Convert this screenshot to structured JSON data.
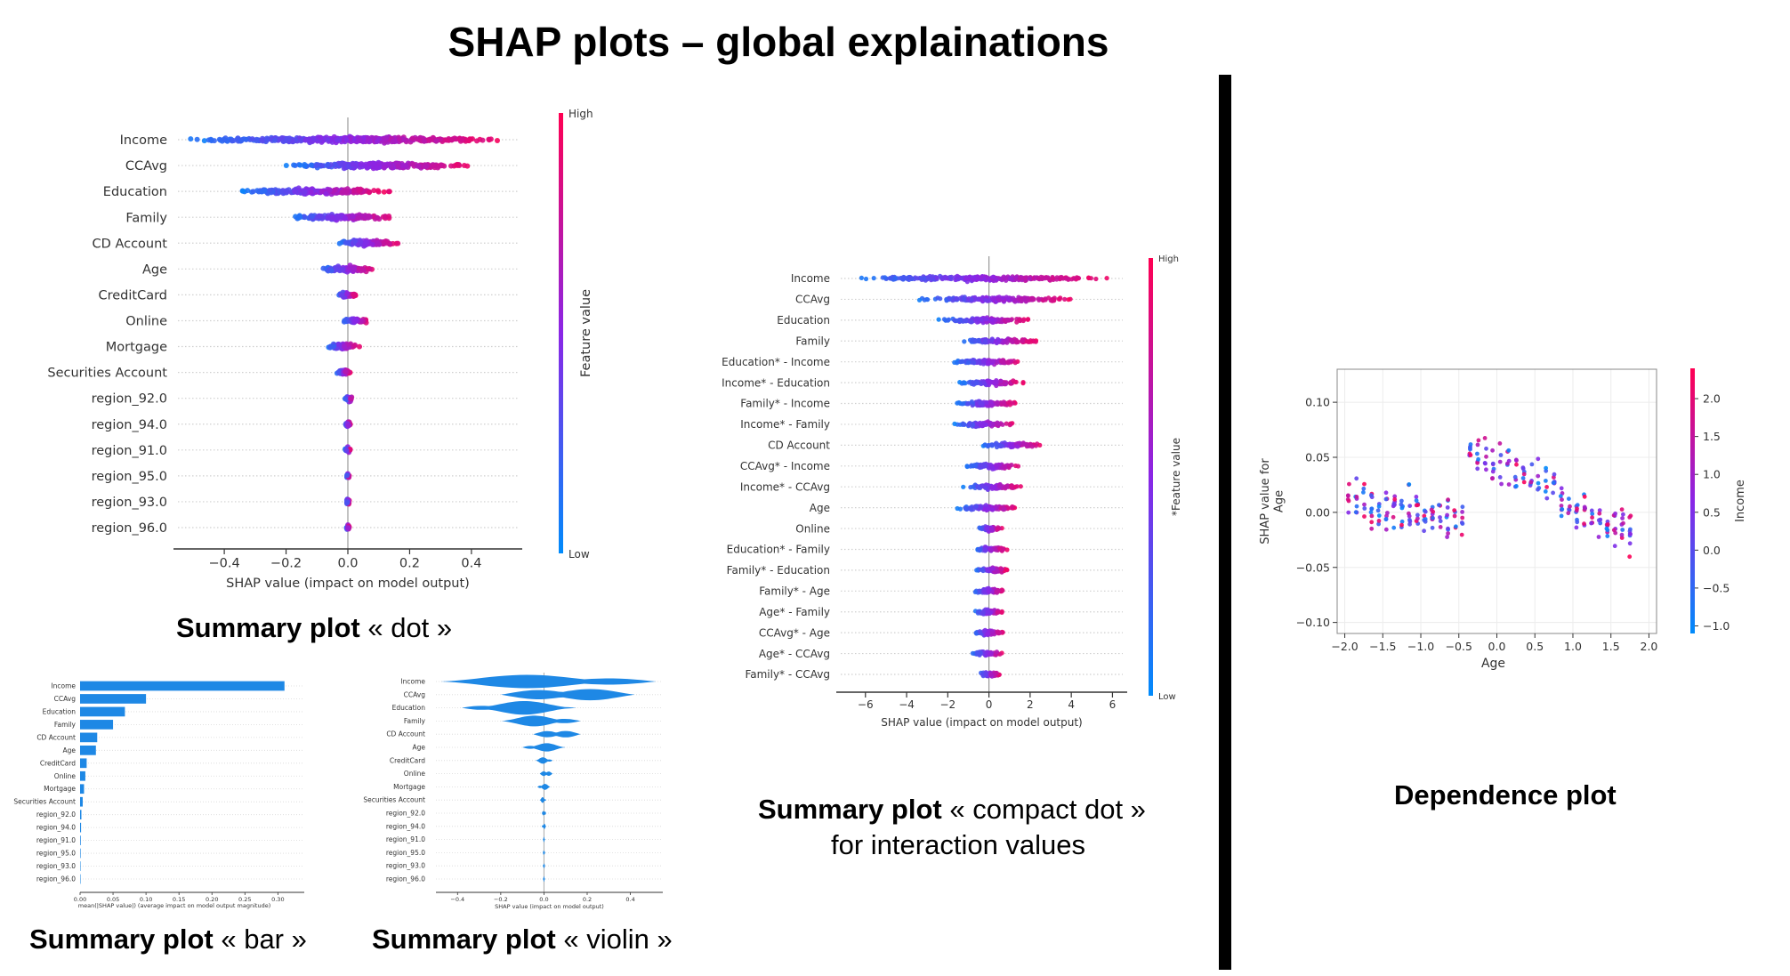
{
  "page": {
    "title": "SHAP plots – global explainations",
    "captions": {
      "dot": {
        "bold": "Summary plot",
        "rest": "« dot »"
      },
      "bar": {
        "bold": "Summary plot",
        "rest": "« bar »"
      },
      "violin": {
        "bold": "Summary plot",
        "rest": "« violin »"
      },
      "compact": {
        "bold": "Summary plot",
        "rest": "« compact dot »",
        "line2": "for interaction values"
      },
      "dependence": {
        "bold": "Dependence plot"
      }
    }
  },
  "colors": {
    "high": "#ff0052",
    "low": "#008bfb",
    "bar": "#1e88e5",
    "grid": "#e0e0e0"
  },
  "chart_data": [
    {
      "id": "dot",
      "type": "scatter",
      "features": [
        "Income",
        "CCAvg",
        "Education",
        "Family",
        "CD Account",
        "Age",
        "CreditCard",
        "Online",
        "Mortgage",
        "Securities Account",
        "region_92.0",
        "region_94.0",
        "region_91.0",
        "region_95.0",
        "region_93.0",
        "region_96.0"
      ],
      "spread": [
        [
          -0.52,
          0.52
        ],
        [
          -0.22,
          0.42
        ],
        [
          -0.35,
          0.15
        ],
        [
          -0.2,
          0.17
        ],
        [
          -0.05,
          0.17
        ],
        [
          -0.1,
          0.1
        ],
        [
          -0.04,
          0.03
        ],
        [
          -0.02,
          0.07
        ],
        [
          -0.07,
          0.04
        ],
        [
          -0.04,
          0.01
        ],
        [
          -0.01,
          0.02
        ],
        [
          -0.01,
          0.01
        ],
        [
          -0.01,
          0.01
        ],
        [
          -0.005,
          0.005
        ],
        [
          -0.005,
          0.005
        ],
        [
          -0.005,
          0.005
        ]
      ],
      "xticks": [
        -0.4,
        -0.2,
        0.0,
        0.2,
        0.4
      ],
      "xtick_labels": [
        "−0.4",
        "−0.2",
        "0.0",
        "0.2",
        "0.4"
      ],
      "xlim": [
        -0.55,
        0.55
      ],
      "xlabel": "SHAP value (impact on model output)",
      "colorbar": {
        "label": "Feature value",
        "high": "High",
        "low": "Low"
      }
    },
    {
      "id": "bar",
      "type": "bar",
      "features": [
        "Income",
        "CCAvg",
        "Education",
        "Family",
        "CD Account",
        "Age",
        "CreditCard",
        "Online",
        "Mortgage",
        "Securities Account",
        "region_92.0",
        "region_94.0",
        "region_91.0",
        "region_95.0",
        "region_93.0",
        "region_96.0"
      ],
      "values": [
        0.31,
        0.1,
        0.068,
        0.05,
        0.026,
        0.024,
        0.01,
        0.008,
        0.006,
        0.004,
        0.002,
        0.0015,
        0.001,
        0.0008,
        0.0006,
        0.0004
      ],
      "xticks": [
        0.0,
        0.05,
        0.1,
        0.15,
        0.2,
        0.25,
        0.3
      ],
      "xtick_labels": [
        "0.00",
        "0.05",
        "0.10",
        "0.15",
        "0.20",
        "0.25",
        "0.30"
      ],
      "xlim": [
        0,
        0.34
      ],
      "xlabel": "mean(|SHAP value|) (average impact on model output magnitude)"
    },
    {
      "id": "violin",
      "type": "area",
      "features": [
        "Income",
        "CCAvg",
        "Education",
        "Family",
        "CD Account",
        "Age",
        "CreditCard",
        "Online",
        "Mortgage",
        "Securities Account",
        "region_92.0",
        "region_94.0",
        "region_91.0",
        "region_95.0",
        "region_93.0",
        "region_96.0"
      ],
      "spread": [
        [
          -0.48,
          0.52
        ],
        [
          -0.2,
          0.42
        ],
        [
          -0.38,
          0.15
        ],
        [
          -0.2,
          0.17
        ],
        [
          -0.05,
          0.17
        ],
        [
          -0.1,
          0.1
        ],
        [
          -0.04,
          0.04
        ],
        [
          -0.02,
          0.04
        ],
        [
          -0.03,
          0.03
        ],
        [
          -0.02,
          0.01
        ],
        [
          -0.01,
          0.01
        ],
        [
          -0.01,
          0.01
        ],
        [
          -0.005,
          0.005
        ],
        [
          -0.005,
          0.005
        ],
        [
          -0.005,
          0.005
        ],
        [
          -0.005,
          0.005
        ]
      ],
      "xticks": [
        -0.4,
        -0.2,
        0.0,
        0.2,
        0.4
      ],
      "xtick_labels": [
        "−0.4",
        "−0.2",
        "0.0",
        "0.2",
        "0.4"
      ],
      "xlim": [
        -0.5,
        0.55
      ],
      "xlabel": "SHAP value (impact on model output)"
    },
    {
      "id": "compact",
      "type": "scatter",
      "features": [
        "Income",
        "CCAvg",
        "Education",
        "Family",
        "Education* - Income",
        "Income* - Education",
        "Family* - Income",
        "Income* - Family",
        "CD Account",
        "CCAvg* - Income",
        "Income* - CCAvg",
        "Age",
        "Online",
        "Education* - Family",
        "Family* - Education",
        "Family* - Age",
        "Age* - Family",
        "CCAvg* - Age",
        "Age* - CCAvg",
        "Family* - CCAvg"
      ],
      "spread": [
        [
          -6.8,
          5.8
        ],
        [
          -3.7,
          4.2
        ],
        [
          -2.6,
          2.3
        ],
        [
          -1.5,
          2.4
        ],
        [
          -1.8,
          1.8
        ],
        [
          -1.6,
          1.8
        ],
        [
          -1.7,
          1.5
        ],
        [
          -1.7,
          1.4
        ],
        [
          -0.4,
          2.7
        ],
        [
          -1.3,
          1.7
        ],
        [
          -1.3,
          1.7
        ],
        [
          -1.6,
          1.5
        ],
        [
          -0.6,
          0.7
        ],
        [
          -0.8,
          0.9
        ],
        [
          -0.8,
          1.0
        ],
        [
          -0.8,
          0.8
        ],
        [
          -0.8,
          0.8
        ],
        [
          -0.9,
          0.8
        ],
        [
          -0.9,
          0.8
        ],
        [
          -0.6,
          0.6
        ]
      ],
      "xticks": [
        -6,
        -4,
        -2,
        0,
        2,
        4,
        6
      ],
      "xtick_labels": [
        "−6",
        "−4",
        "−2",
        "0",
        "2",
        "4",
        "6"
      ],
      "xlim": [
        -7.2,
        6.5
      ],
      "xlabel": "SHAP value (impact on model output)",
      "colorbar": {
        "label": "*Feature value",
        "high": "High",
        "low": "Low"
      }
    },
    {
      "id": "dependence",
      "type": "scatter",
      "xlabel": "Age",
      "ylabel": "SHAP value for Age",
      "ylabel_lines": [
        "SHAP value for",
        "Age"
      ],
      "xlim": [
        -2.1,
        2.1
      ],
      "ylim": [
        -0.11,
        0.13
      ],
      "xticks": [
        -2.0,
        -1.5,
        -1.0,
        -0.5,
        0.0,
        0.5,
        1.0,
        1.5,
        2.0
      ],
      "xtick_labels": [
        "−2.0",
        "−1.5",
        "−1.0",
        "−0.5",
        "0.0",
        "0.5",
        "1.0",
        "1.5",
        "2.0"
      ],
      "yticks": [
        -0.1,
        -0.05,
        0.0,
        0.05,
        0.1
      ],
      "ytick_labels": [
        "−0.10",
        "−0.05",
        "0.00",
        "0.05",
        "0.10"
      ],
      "colorbar": {
        "label": "Income",
        "ticks": [
          -1.0,
          -0.5,
          0.0,
          0.5,
          1.0,
          1.5,
          2.0
        ],
        "tick_labels": [
          "−1.0",
          "−0.5",
          "0.0",
          "0.5",
          "1.0",
          "1.5",
          "2.0"
        ],
        "range": [
          -1.1,
          2.4
        ]
      }
    }
  ]
}
